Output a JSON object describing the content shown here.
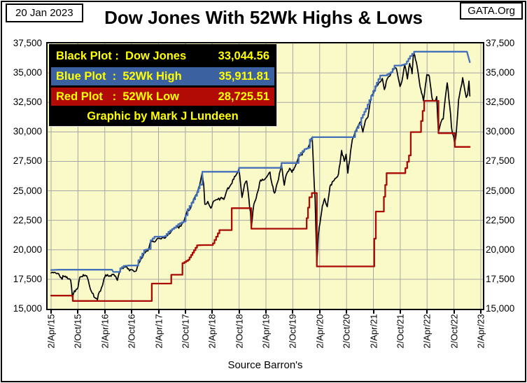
{
  "header": {
    "date": "20 Jan 2023",
    "title": "Dow Jones With 52Wk Highs & Lows",
    "brand": "GATA.Org"
  },
  "legend": {
    "text_color": "#ffff00",
    "rows": [
      {
        "label": "Black Plot :  Dow Jones",
        "value": "33,044.56",
        "bg": "#000000"
      },
      {
        "label": "Blue Plot  :  52Wk High",
        "value": "35,911.81",
        "bg": "#3c61a1"
      },
      {
        "label": "Red Plot   :  52Wk Low",
        "value": "28,725.51",
        "bg": "#b20a04"
      }
    ],
    "credit": "Graphic by Mark J Lundeen"
  },
  "source": "Source Barron's",
  "chart_data": {
    "type": "line",
    "title": "Dow Jones With 52Wk Highs & Lows",
    "grid": true,
    "legend_position": "top-left",
    "plot_bg": "#fafac8",
    "grid_color": "#a6a6a6",
    "ylim": [
      15000,
      37500
    ],
    "xlim_months": [
      0,
      96
    ],
    "x_unit": "months since 2/Apr/15",
    "y_ticks": [
      {
        "v": 37500,
        "label": "37,500"
      },
      {
        "v": 35000,
        "label": "35,000"
      },
      {
        "v": 32500,
        "label": "32,500"
      },
      {
        "v": 30000,
        "label": "30,000"
      },
      {
        "v": 27500,
        "label": "27,500"
      },
      {
        "v": 25000,
        "label": "25,000"
      },
      {
        "v": 22500,
        "label": "22,500"
      },
      {
        "v": 20000,
        "label": "20,000"
      },
      {
        "v": 17500,
        "label": "17,500"
      },
      {
        "v": 15000,
        "label": "15,000"
      }
    ],
    "x_ticks": [
      {
        "t": 0,
        "label": "2/Apr/15"
      },
      {
        "t": 6,
        "label": "2/Oct/15"
      },
      {
        "t": 12,
        "label": "2/Apr/16"
      },
      {
        "t": 18,
        "label": "2/Oct/16"
      },
      {
        "t": 24,
        "label": "2/Apr/17"
      },
      {
        "t": 30,
        "label": "2/Oct/17"
      },
      {
        "t": 36,
        "label": "2/Apr/18"
      },
      {
        "t": 42,
        "label": "2/Oct/18"
      },
      {
        "t": 48,
        "label": "2/Apr/19"
      },
      {
        "t": 54,
        "label": "2/Oct/19"
      },
      {
        "t": 60,
        "label": "2/Apr/20"
      },
      {
        "t": 66,
        "label": "2/Oct/20"
      },
      {
        "t": 72,
        "label": "2/Apr/21"
      },
      {
        "t": 78,
        "label": "2/Oct/21"
      },
      {
        "t": 84,
        "label": "2/Apr/22"
      },
      {
        "t": 90,
        "label": "2/Oct/22"
      },
      {
        "t": 96,
        "label": "2/Apr/23"
      }
    ],
    "series": [
      {
        "name": "Dow Jones",
        "color": "#000000",
        "style": "daily",
        "width": 1.7,
        "last_value": 33044.56,
        "points": [
          [
            0,
            18040
          ],
          [
            0.7,
            18080
          ],
          [
            1.5,
            18010
          ],
          [
            2.3,
            17620
          ],
          [
            3,
            17730
          ],
          [
            3.7,
            17550
          ],
          [
            4.4,
            17400
          ],
          [
            4.77,
            15871
          ],
          [
            5,
            16280
          ],
          [
            5.6,
            16650
          ],
          [
            6,
            16790
          ],
          [
            6.4,
            17664
          ],
          [
            7,
            17720
          ],
          [
            7.6,
            17850
          ],
          [
            8.3,
            17425
          ],
          [
            9,
            16466
          ],
          [
            9.6,
            15990
          ],
          [
            10.35,
            15760
          ],
          [
            10.8,
            16450
          ],
          [
            11.5,
            17000
          ],
          [
            12,
            17685
          ],
          [
            12.6,
            17900
          ],
          [
            13.4,
            17750
          ],
          [
            14,
            17925
          ],
          [
            14.8,
            17410
          ],
          [
            15.3,
            18146
          ],
          [
            15.7,
            18432
          ],
          [
            16.5,
            18530
          ],
          [
            17.3,
            18400
          ],
          [
            18,
            18308
          ],
          [
            18.6,
            18150
          ],
          [
            19,
            18200
          ],
          [
            19.6,
            18870
          ],
          [
            20,
            19124
          ],
          [
            20.8,
            19763
          ],
          [
            21.6,
            19890
          ],
          [
            22.3,
            20810
          ],
          [
            23,
            20663
          ],
          [
            23.7,
            20950
          ],
          [
            24.4,
            20940
          ],
          [
            25.2,
            21010
          ],
          [
            26,
            21200
          ],
          [
            26.8,
            21530
          ],
          [
            27.5,
            21891
          ],
          [
            28.3,
            21950
          ],
          [
            29,
            22000
          ],
          [
            29.6,
            22405
          ],
          [
            30.4,
            23377
          ],
          [
            31.2,
            23560
          ],
          [
            31.8,
            24272
          ],
          [
            32.5,
            24719
          ],
          [
            33.2,
            25520
          ],
          [
            33.75,
            26616
          ],
          [
            34.1,
            25520
          ],
          [
            34.35,
            23860
          ],
          [
            35,
            24103
          ],
          [
            35.7,
            23533
          ],
          [
            36.4,
            24163
          ],
          [
            37.2,
            24263
          ],
          [
            37.9,
            24416
          ],
          [
            38.6,
            24271
          ],
          [
            39.3,
            25090
          ],
          [
            40,
            25415
          ],
          [
            40.8,
            25965
          ],
          [
            41.5,
            26458
          ],
          [
            41.95,
            26951
          ],
          [
            42.4,
            25340
          ],
          [
            42.65,
            24443
          ],
          [
            43.2,
            25538
          ],
          [
            43.7,
            25830
          ],
          [
            44.2,
            24286
          ],
          [
            44.72,
            21792
          ],
          [
            45.3,
            23850
          ],
          [
            46,
            24737
          ],
          [
            46.8,
            25916
          ],
          [
            47.6,
            25929
          ],
          [
            48.3,
            26250
          ],
          [
            48.9,
            26593
          ],
          [
            49.4,
            25490
          ],
          [
            49.9,
            24815
          ],
          [
            50.6,
            25720
          ],
          [
            51.2,
            26717
          ],
          [
            51.45,
            27332
          ],
          [
            52.1,
            25479
          ],
          [
            52.6,
            26403
          ],
          [
            53.3,
            26917
          ],
          [
            53.8,
            26573
          ],
          [
            54.5,
            27046
          ],
          [
            55.2,
            27783
          ],
          [
            55.9,
            28051
          ],
          [
            56.6,
            28538
          ],
          [
            57.3,
            28634
          ],
          [
            57.75,
            28989
          ],
          [
            58.33,
            29551
          ],
          [
            58.8,
            25409
          ],
          [
            59.35,
            18592
          ],
          [
            59.7,
            21200
          ],
          [
            60.1,
            22327
          ],
          [
            60.6,
            23719
          ],
          [
            61.1,
            24346
          ],
          [
            61.7,
            23650
          ],
          [
            62.3,
            25383
          ],
          [
            63,
            25813
          ],
          [
            63.6,
            26067
          ],
          [
            64.2,
            26428
          ],
          [
            64.9,
            28430
          ],
          [
            65.5,
            27500
          ],
          [
            65.9,
            28100
          ],
          [
            66.3,
            26502
          ],
          [
            66.9,
            28336
          ],
          [
            67.5,
            29639
          ],
          [
            68.2,
            30218
          ],
          [
            68.7,
            30606
          ],
          [
            69.2,
            30814
          ],
          [
            69.65,
            29983
          ],
          [
            70.2,
            30932
          ],
          [
            70.8,
            31270
          ],
          [
            71.5,
            32981
          ],
          [
            72.2,
            33527
          ],
          [
            72.8,
            33875
          ],
          [
            73.4,
            34200
          ],
          [
            74,
            34529
          ],
          [
            74.45,
            33587
          ],
          [
            75.1,
            34503
          ],
          [
            75.9,
            34935
          ],
          [
            76.6,
            35361
          ],
          [
            77.15,
            35369
          ],
          [
            77.95,
            33844
          ],
          [
            78.4,
            34326
          ],
          [
            79,
            35677
          ],
          [
            79.6,
            34484
          ],
          [
            80.1,
            35804
          ],
          [
            80.65,
            34932
          ],
          [
            80.9,
            36338
          ],
          [
            81.07,
            36800
          ],
          [
            81.6,
            35912
          ],
          [
            82.25,
            34297
          ],
          [
            82.6,
            33597
          ],
          [
            82.95,
            33131
          ],
          [
            83.2,
            32632
          ],
          [
            83.95,
            34861
          ],
          [
            84.5,
            34721
          ],
          [
            85.05,
            32977
          ],
          [
            85.45,
            31730
          ],
          [
            85.9,
            32637
          ],
          [
            86.15,
            32990
          ],
          [
            86.52,
            29888
          ],
          [
            87.05,
            30775
          ],
          [
            87.6,
            31097
          ],
          [
            88.05,
            32845
          ],
          [
            88.5,
            34152
          ],
          [
            89.25,
            31510
          ],
          [
            89.65,
            29591
          ],
          [
            89.95,
            28725.51
          ],
          [
            90.45,
            29634
          ],
          [
            91.05,
            32733
          ],
          [
            91.55,
            33747
          ],
          [
            91.95,
            34589
          ],
          [
            92.45,
            33476
          ],
          [
            92.75,
            32920
          ],
          [
            93.05,
            33147
          ],
          [
            93.35,
            34302
          ],
          [
            93.55,
            33044.56
          ]
        ]
      },
      {
        "name": "52Wk High",
        "color": "#4470ba",
        "style": "step",
        "fall": "slide",
        "width": 2.3,
        "last_value": 35911.81,
        "points": [
          [
            0,
            18288
          ],
          [
            1.6,
            18312
          ],
          [
            13.6,
            18312
          ],
          [
            13.9,
            18120
          ],
          [
            15.1,
            18120
          ],
          [
            15.45,
            18432
          ],
          [
            16.2,
            18636
          ],
          [
            17.3,
            18668
          ],
          [
            19,
            18668
          ],
          [
            19.5,
            19124
          ],
          [
            20.8,
            19975
          ],
          [
            21.8,
            20069
          ],
          [
            22.25,
            20812
          ],
          [
            23.1,
            21115
          ],
          [
            24.9,
            21115
          ],
          [
            25.4,
            21169
          ],
          [
            26.2,
            21529
          ],
          [
            27.5,
            21891
          ],
          [
            28.4,
            22179
          ],
          [
            29.6,
            22405
          ],
          [
            30.5,
            23441
          ],
          [
            31.8,
            24272
          ],
          [
            32.6,
            24876
          ],
          [
            33.2,
            25520
          ],
          [
            33.78,
            26616
          ],
          [
            41.8,
            26616
          ],
          [
            41.98,
            26951
          ],
          [
            51.2,
            26951
          ],
          [
            51.47,
            27359
          ],
          [
            54.9,
            27359
          ],
          [
            55.3,
            28051
          ],
          [
            56.6,
            28538
          ],
          [
            57.4,
            28645
          ],
          [
            57.8,
            29348
          ],
          [
            58.35,
            29551
          ],
          [
            67.6,
            29551
          ],
          [
            67.9,
            30046
          ],
          [
            68.7,
            30606
          ],
          [
            69.3,
            31188
          ],
          [
            70.3,
            31961
          ],
          [
            71.5,
            33066
          ],
          [
            72.4,
            33875
          ],
          [
            73.5,
            34777
          ],
          [
            74.7,
            34786
          ],
          [
            75.9,
            35061
          ],
          [
            76.7,
            35625
          ],
          [
            78,
            35625
          ],
          [
            79.1,
            35756
          ],
          [
            80.2,
            36432
          ],
          [
            81.1,
            36800
          ],
          [
            92.9,
            36800
          ],
          [
            93.55,
            35911.81
          ]
        ]
      },
      {
        "name": "52Wk Low",
        "color": "#aa0b04",
        "style": "step",
        "fall": "step",
        "width": 2.3,
        "last_value": 28725.51,
        "points": [
          [
            0,
            16117
          ],
          [
            4.72,
            16117
          ],
          [
            4.85,
            15666
          ],
          [
            10.25,
            15666
          ],
          [
            10.4,
            15660
          ],
          [
            22.25,
            15660
          ],
          [
            22.5,
            17140
          ],
          [
            26.6,
            17140
          ],
          [
            26.85,
            17888
          ],
          [
            29.15,
            17888
          ],
          [
            29.35,
            18868
          ],
          [
            30.6,
            19152
          ],
          [
            31.6,
            19762
          ],
          [
            32.6,
            20380
          ],
          [
            33.7,
            20404
          ],
          [
            35.95,
            20404
          ],
          [
            36.15,
            20553
          ],
          [
            37.6,
            21675
          ],
          [
            40.15,
            21675
          ],
          [
            40.35,
            23533
          ],
          [
            44.5,
            23533
          ],
          [
            44.73,
            21792
          ],
          [
            56.85,
            21792
          ],
          [
            57.1,
            22686
          ],
          [
            57.7,
            24466
          ],
          [
            58.25,
            24815
          ],
          [
            58.95,
            24815
          ],
          [
            59.37,
            18592
          ],
          [
            71.95,
            18592
          ],
          [
            72.2,
            20943
          ],
          [
            72.55,
            23247
          ],
          [
            73.95,
            23247
          ],
          [
            74.35,
            24500
          ],
          [
            74.95,
            26502
          ],
          [
            78.95,
            26502
          ],
          [
            79.15,
            26925
          ],
          [
            79.95,
            28000
          ],
          [
            80.35,
            29983
          ],
          [
            82.4,
            29983
          ],
          [
            82.65,
            30924
          ],
          [
            83.35,
            32632
          ],
          [
            86.15,
            32632
          ],
          [
            86.54,
            29888
          ],
          [
            89.85,
            29888
          ],
          [
            90.2,
            28725.51
          ],
          [
            93.55,
            28725.51
          ]
        ]
      }
    ]
  }
}
